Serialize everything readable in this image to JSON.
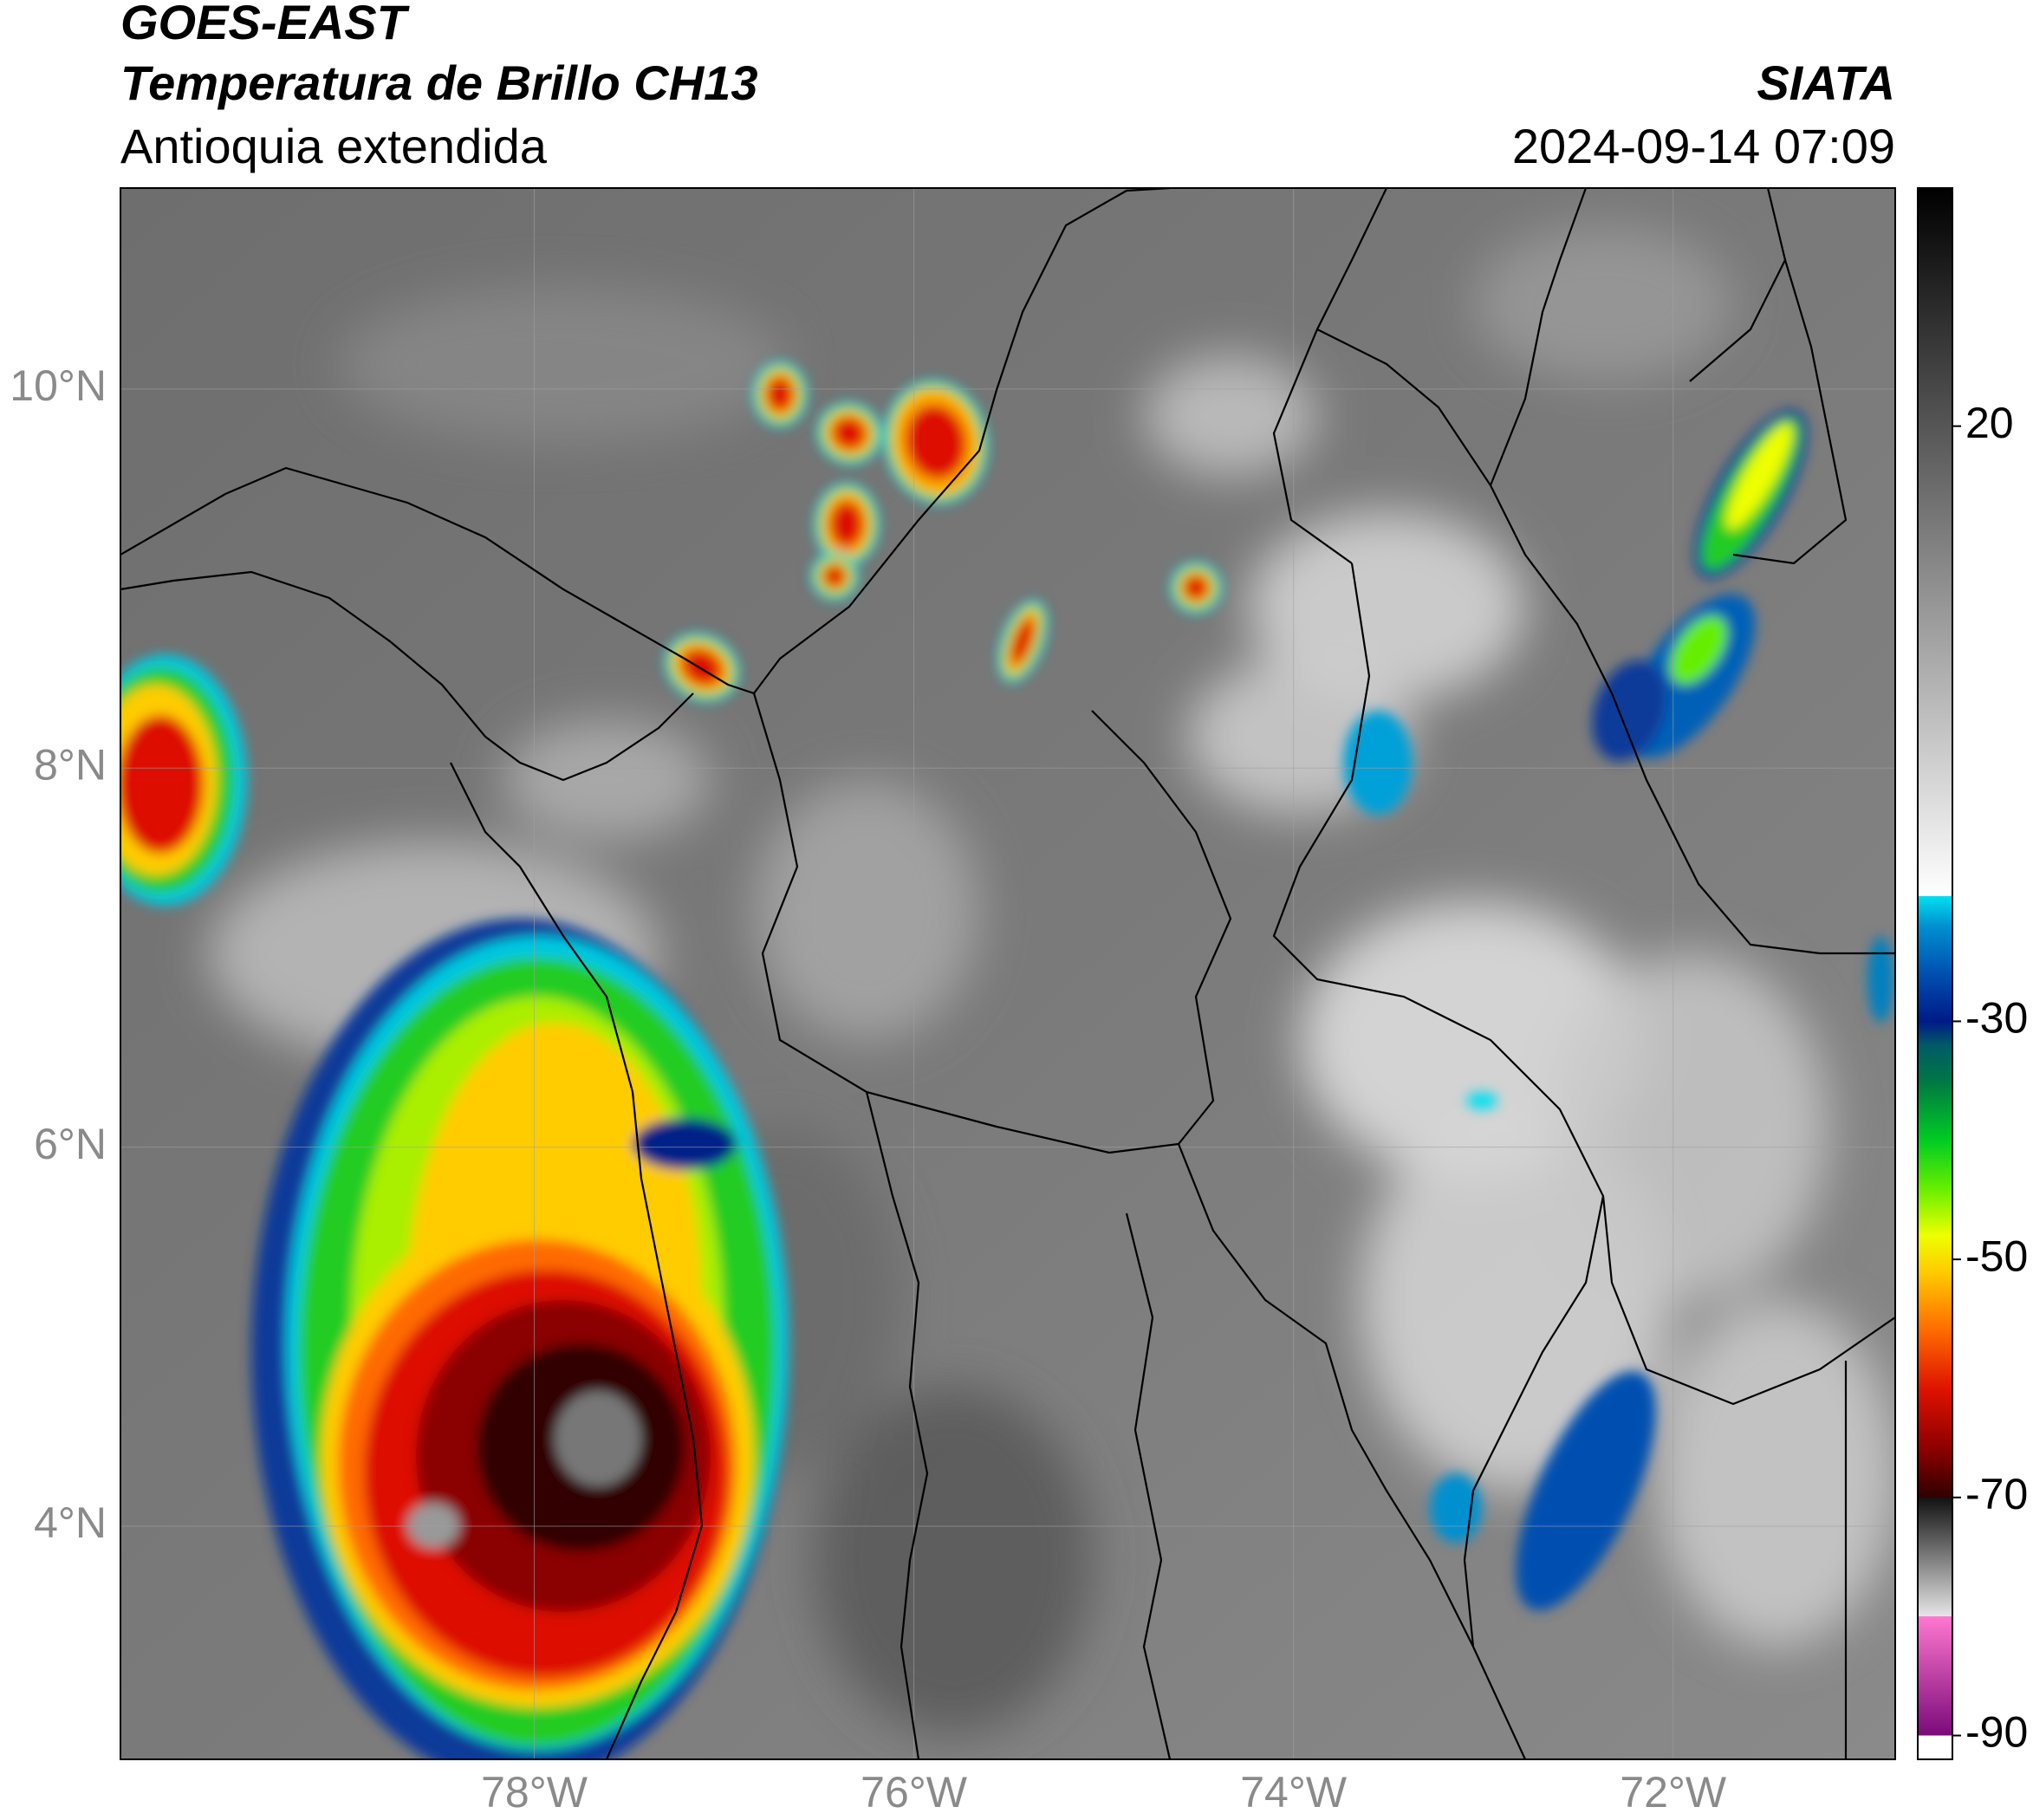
{
  "header": {
    "satellite": "GOES-EAST",
    "product": "Temperatura de Brillo CH13",
    "region": "Antioquia extendida",
    "source": "SIATA",
    "datetime": "2024-09-14 07:09"
  },
  "map": {
    "xlim": [
      -80.18,
      -70.83
    ],
    "ylim": [
      2.77,
      11.06
    ],
    "xticks": [
      {
        "value": -78,
        "label": "78°W"
      },
      {
        "value": -76,
        "label": "76°W"
      },
      {
        "value": -74,
        "label": "74°W"
      },
      {
        "value": -72,
        "label": "72°W"
      }
    ],
    "yticks": [
      {
        "value": 4,
        "label": "4°N"
      },
      {
        "value": 6,
        "label": "6°N"
      },
      {
        "value": 8,
        "label": "8°N"
      },
      {
        "value": 10,
        "label": "10°N"
      }
    ],
    "grid": true
  },
  "colorbar": {
    "lim": [
      -92,
      40
    ],
    "ticks": [
      20,
      -30,
      -50,
      -70,
      -90
    ],
    "stops": [
      {
        "value": -92,
        "color": "#ffffff"
      },
      {
        "value": -90,
        "color": "#ffffff"
      },
      {
        "value": -90,
        "color": "#7a0a7a"
      },
      {
        "value": -80,
        "color": "#ff77d0"
      },
      {
        "value": -80,
        "color": "#e6e6e6"
      },
      {
        "value": -70,
        "color": "#111111"
      },
      {
        "value": -70,
        "color": "#300000"
      },
      {
        "value": -66,
        "color": "#8b0000"
      },
      {
        "value": -61,
        "color": "#dd1100"
      },
      {
        "value": -56,
        "color": "#ff6a00"
      },
      {
        "value": -51,
        "color": "#ffcc00"
      },
      {
        "value": -48,
        "color": "#eeff00"
      },
      {
        "value": -44,
        "color": "#66ee00"
      },
      {
        "value": -40,
        "color": "#00cc22"
      },
      {
        "value": -35,
        "color": "#007744"
      },
      {
        "value": -32,
        "color": "#005a66"
      },
      {
        "value": -30,
        "color": "#001a88"
      },
      {
        "value": -26,
        "color": "#0050b0"
      },
      {
        "value": -22,
        "color": "#0090d0"
      },
      {
        "value": -19.5,
        "color": "#00e0f0"
      },
      {
        "value": -19.5,
        "color": "#ffffff"
      },
      {
        "value": 40,
        "color": "#000000"
      }
    ]
  }
}
